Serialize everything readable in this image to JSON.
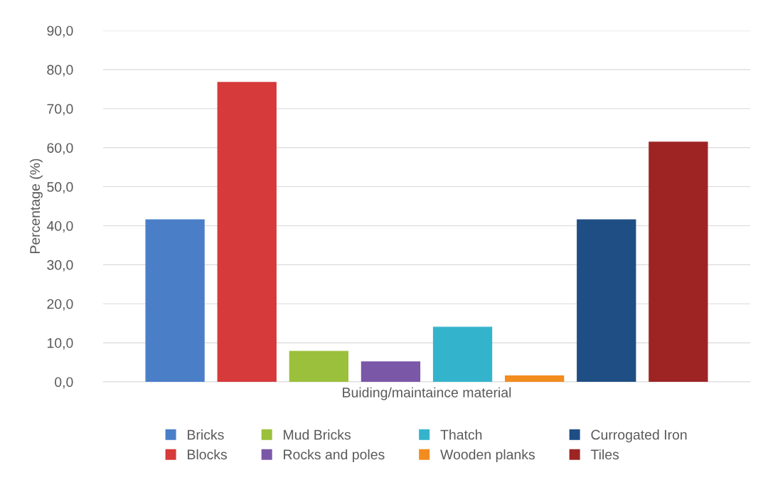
{
  "chart_data": {
    "type": "bar",
    "ylabel": "Percentage (%)",
    "xlabel": "Buiding/maintaince material",
    "categories": [
      null
    ],
    "series": [
      {
        "name": "Bricks",
        "color": "#4a7fc8",
        "values": [
          41.5
        ]
      },
      {
        "name": "Blocks",
        "color": "#d63a3a",
        "values": [
          76.7
        ]
      },
      {
        "name": "Mud Bricks",
        "color": "#9bc03b",
        "values": [
          7.8
        ]
      },
      {
        "name": "Rocks and poles",
        "color": "#7b57a8",
        "values": [
          5.1
        ]
      },
      {
        "name": "Thatch",
        "color": "#34b4cc",
        "values": [
          14.0
        ]
      },
      {
        "name": "Wooden planks",
        "color": "#f28c1e",
        "values": [
          1.5
        ]
      },
      {
        "name": "Currogated Iron",
        "color": "#1f4e85",
        "values": [
          41.5
        ]
      },
      {
        "name": "Tiles",
        "color": "#9e2424",
        "values": [
          61.4
        ]
      }
    ],
    "ylim": [
      0,
      90
    ],
    "yticks": [
      {
        "value": 0,
        "label": "0,0"
      },
      {
        "value": 10,
        "label": "10,0"
      },
      {
        "value": 20,
        "label": "20,0"
      },
      {
        "value": 30,
        "label": "30,0"
      },
      {
        "value": 40,
        "label": "40,0"
      },
      {
        "value": 50,
        "label": "50,0"
      },
      {
        "value": 60,
        "label": "60,0"
      },
      {
        "value": 70,
        "label": "70,0"
      },
      {
        "value": 80,
        "label": "80,0"
      },
      {
        "value": 90,
        "label": "90,0"
      }
    ],
    "grid": "y",
    "legend": "bottom"
  }
}
